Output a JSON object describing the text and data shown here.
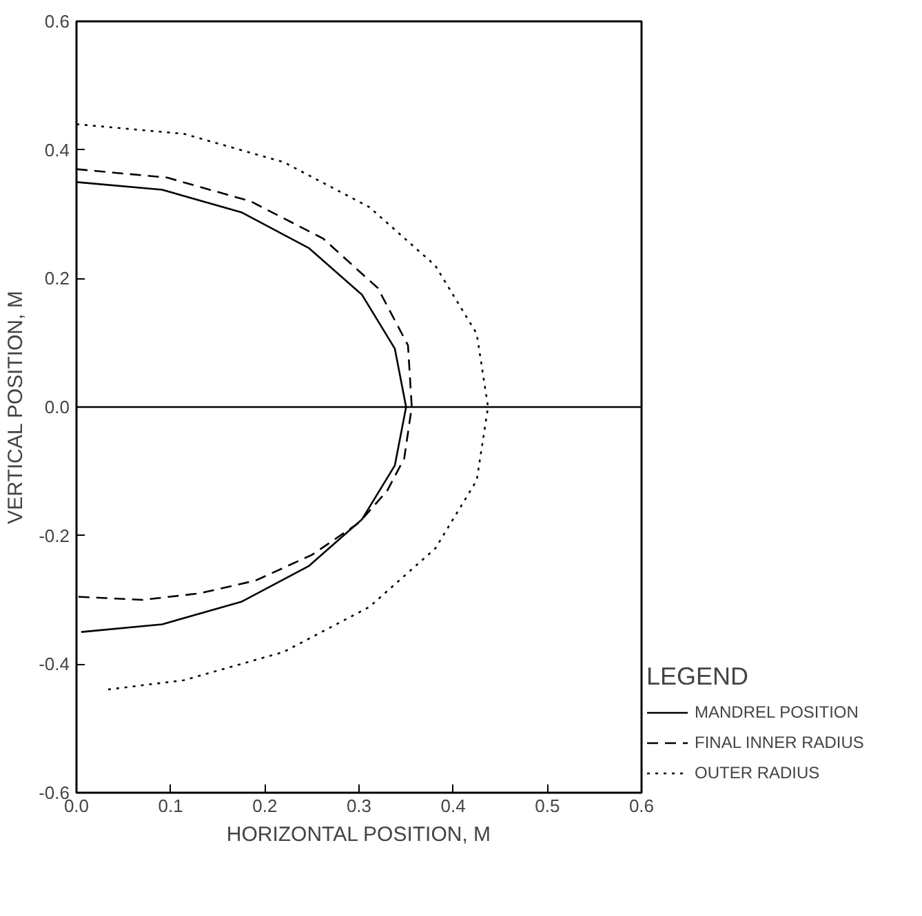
{
  "chart_data": {
    "type": "line",
    "xlabel": "HORIZONTAL POSITION, M",
    "ylabel": "VERTICAL POSITION, M",
    "legend_title": "LEGEND",
    "legend": "right",
    "grid": false,
    "xlim": [
      0,
      0.6
    ],
    "ylim": [
      -0.6,
      0.6
    ],
    "xticks": [
      {
        "value": 0,
        "label": "0.0"
      },
      0.1,
      0.2,
      0.3,
      0.4,
      0.5,
      0.6
    ],
    "yticks": [
      -0.6,
      -0.4,
      -0.2,
      {
        "value": 0,
        "label": "0.0"
      },
      0.2,
      0.4,
      0.6
    ],
    "ref_lines": [
      {
        "axis": "y",
        "value": 0,
        "color": "#000000",
        "line_style": "solid"
      }
    ],
    "series": [
      {
        "name": "MANDREL POSITION",
        "color": "#000000",
        "line_style": "solid",
        "x": [
          0,
          0.091,
          0.175,
          0.247,
          0.303,
          0.338,
          0.35,
          0.338,
          0.303,
          0.247,
          0.175,
          0.091,
          0.005
        ],
        "values": [
          0.35,
          0.338,
          0.303,
          0.247,
          0.175,
          0.091,
          0,
          -0.091,
          -0.175,
          -0.247,
          -0.303,
          -0.338,
          -0.35
        ]
      },
      {
        "name": "FINAL INNER RADIUS",
        "color": "#000000",
        "line_style": "dashed",
        "x": [
          0,
          0.096,
          0.185,
          0.262,
          0.32,
          0.352,
          0.356,
          0.348,
          0.33,
          0.3,
          0.25,
          0.19,
          0.13,
          0.07,
          0.0
        ],
        "values": [
          0.37,
          0.357,
          0.32,
          0.262,
          0.185,
          0.096,
          0,
          -0.08,
          -0.13,
          -0.18,
          -0.23,
          -0.27,
          -0.29,
          -0.3,
          -0.295
        ]
      },
      {
        "name": "OUTER RADIUS",
        "color": "#000000",
        "line_style": "dotted",
        "x": [
          0,
          0.114,
          0.22,
          0.311,
          0.381,
          0.425,
          0.437,
          0.425,
          0.381,
          0.311,
          0.22,
          0.114,
          0.03
        ],
        "values": [
          0.44,
          0.425,
          0.381,
          0.311,
          0.22,
          0.114,
          0,
          -0.114,
          -0.22,
          -0.311,
          -0.381,
          -0.425,
          -0.44
        ]
      }
    ]
  }
}
